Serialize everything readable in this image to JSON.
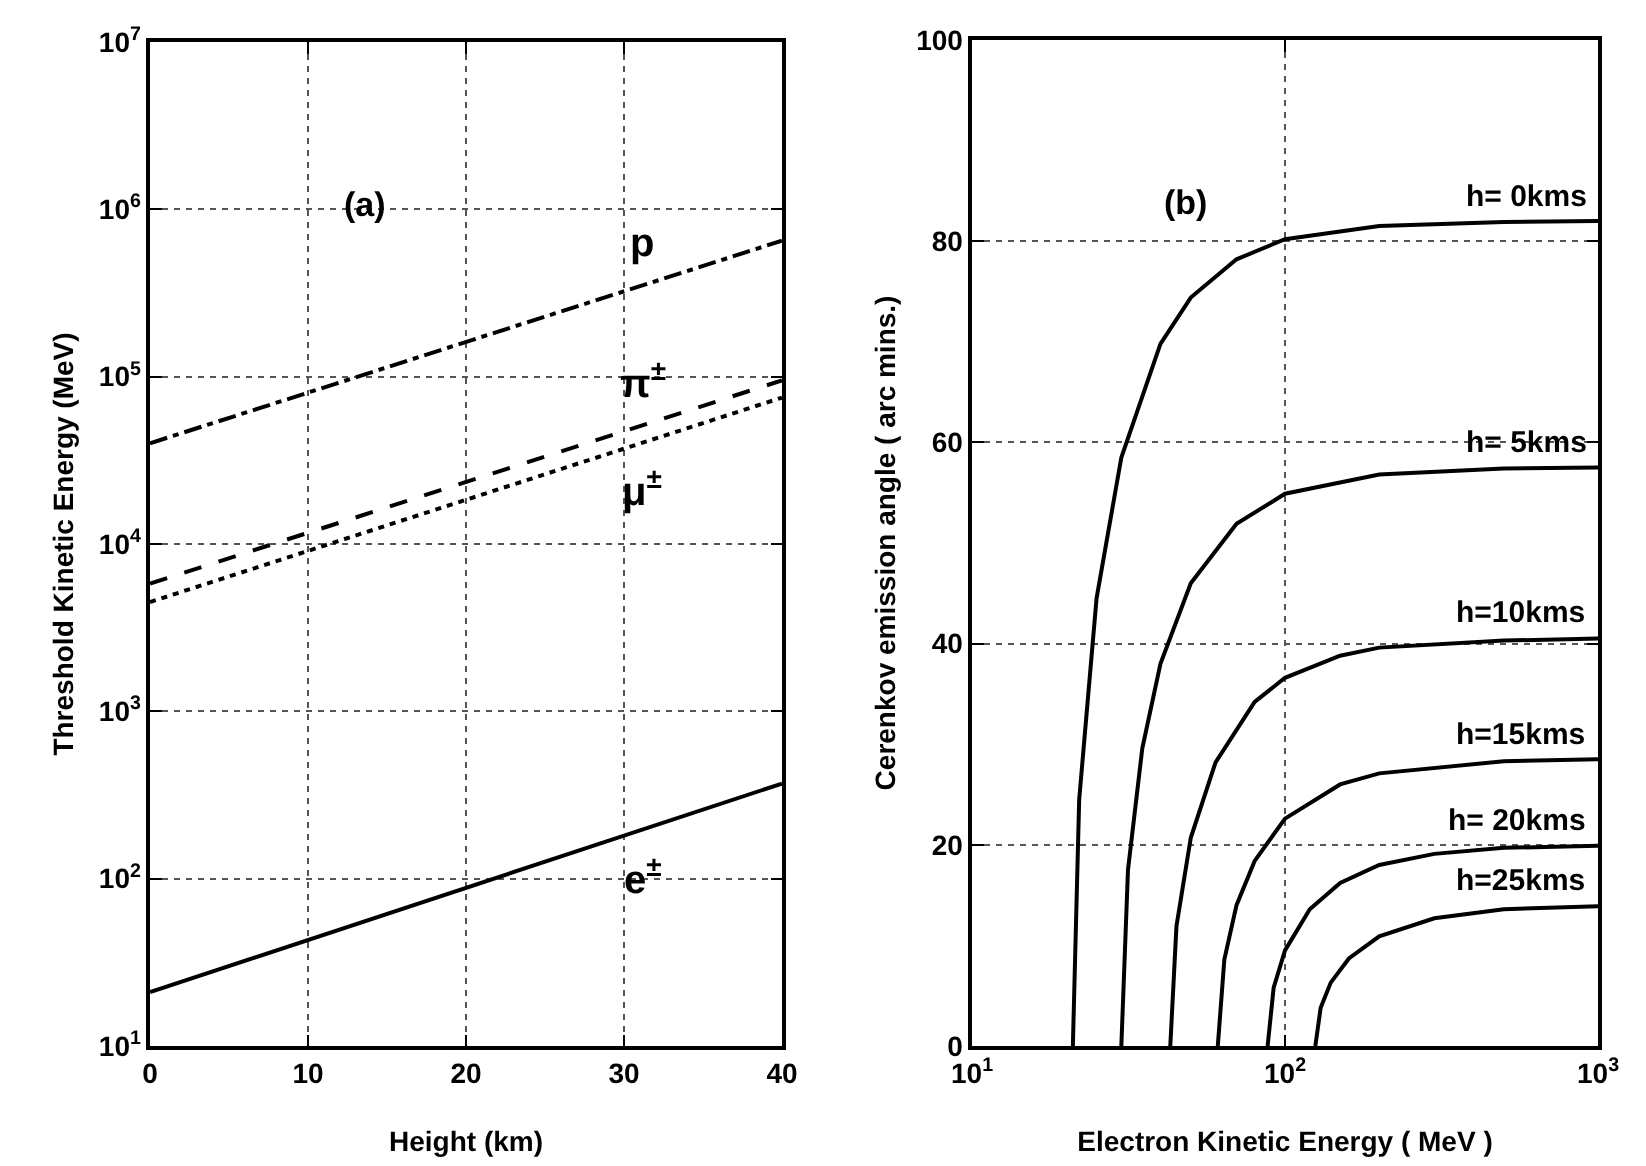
{
  "chart_data": [
    {
      "type": "line",
      "xlabel": "Height (km)",
      "ylabel": "Threshold Kinetic Energy (MeV)",
      "annotations": [
        "(a)"
      ],
      "log": "y",
      "grid": true,
      "marker": "none",
      "xlim": [
        0,
        40
      ],
      "xticks": [
        0,
        10,
        20,
        30,
        40
      ],
      "ylim": [
        10,
        10000000
      ],
      "yticks": [
        {
          "value": 10,
          "label": "10$^{1}$"
        },
        {
          "value": 100,
          "label": "10$^{2}$"
        },
        {
          "value": 1000,
          "label": "10$^{3}$"
        },
        {
          "value": 10000,
          "label": "10$^{4}$"
        },
        {
          "value": 100000,
          "label": "10$^{5}$"
        },
        {
          "value": 1000000,
          "label": "10$^{6}$"
        },
        {
          "value": 10000000,
          "label": "10$^{7}$"
        }
      ],
      "series": [
        {
          "name": "p",
          "color": "#000000",
          "line_style": "dashdot",
          "x": [
            0,
            40
          ],
          "values": [
            40000,
            650000
          ]
        },
        {
          "name": "π$^{±}$",
          "color": "#000000",
          "line_style": "dashed",
          "x": [
            0,
            40
          ],
          "values": [
            5800,
            95000
          ]
        },
        {
          "name": "μ$^{±}$",
          "color": "#000000",
          "line_style": "dotted",
          "x": [
            0,
            40
          ],
          "values": [
            4500,
            75000
          ]
        },
        {
          "name": "e$^{±}$",
          "color": "#000000",
          "line_style": "solid",
          "x": [
            0,
            40
          ],
          "values": [
            21,
            370
          ]
        }
      ]
    },
    {
      "type": "line",
      "xlabel": "Electron Kinetic Energy ( MeV )",
      "ylabel": "Cerenkov emission angle ( arc mins.)",
      "annotations": [
        "(b)"
      ],
      "log": "x",
      "grid": true,
      "marker": "none",
      "xlim": [
        10,
        1000
      ],
      "xticks": [
        {
          "value": 10,
          "label": "10$^{1}$"
        },
        {
          "value": 100,
          "label": "10$^{2}$"
        },
        {
          "value": 1000,
          "label": "10$^{3}$"
        }
      ],
      "ylim": [
        0,
        100
      ],
      "yticks": [
        0,
        20,
        40,
        60,
        80,
        100
      ],
      "series": [
        {
          "name": "h= 0kms",
          "color": "#000000",
          "x": [
            21,
            22,
            25,
            30,
            40,
            50,
            70,
            100,
            200,
            500,
            1000
          ],
          "values": [
            0,
            24.5,
            44.5,
            58.5,
            69.8,
            74.4,
            78.2,
            80.2,
            81.5,
            81.9,
            82
          ]
        },
        {
          "name": "h= 5kms",
          "color": "#000000",
          "x": [
            30,
            31.5,
            35,
            40,
            50,
            70,
            100,
            200,
            500,
            1000
          ],
          "values": [
            0,
            17.5,
            29.6,
            38,
            46,
            51.9,
            54.9,
            56.8,
            57.4,
            57.5
          ]
        },
        {
          "name": "h=10kms",
          "color": "#000000",
          "x": [
            43,
            45,
            50,
            60,
            80,
            100,
            150,
            200,
            500,
            1000
          ],
          "values": [
            0,
            11.9,
            20.7,
            28.2,
            34.2,
            36.6,
            38.8,
            39.6,
            40.3,
            40.5
          ]
        },
        {
          "name": "h=15kms",
          "color": "#000000",
          "x": [
            61,
            64,
            70,
            80,
            100,
            150,
            200,
            500,
            1000
          ],
          "values": [
            0,
            8.6,
            14,
            18.4,
            22.6,
            26,
            27.1,
            28.3,
            28.5
          ]
        },
        {
          "name": "h= 20kms",
          "color": "#000000",
          "x": [
            88,
            92,
            100,
            120,
            150,
            200,
            300,
            500,
            1000
          ],
          "values": [
            0,
            5.8,
            9.5,
            13.6,
            16.2,
            18,
            19.1,
            19.7,
            19.9
          ]
        },
        {
          "name": "h=25kms",
          "color": "#000000",
          "x": [
            125,
            130,
            140,
            160,
            200,
            300,
            500,
            1000
          ],
          "values": [
            0,
            3.8,
            6.3,
            8.7,
            10.9,
            12.7,
            13.6,
            13.9
          ]
        }
      ]
    }
  ]
}
